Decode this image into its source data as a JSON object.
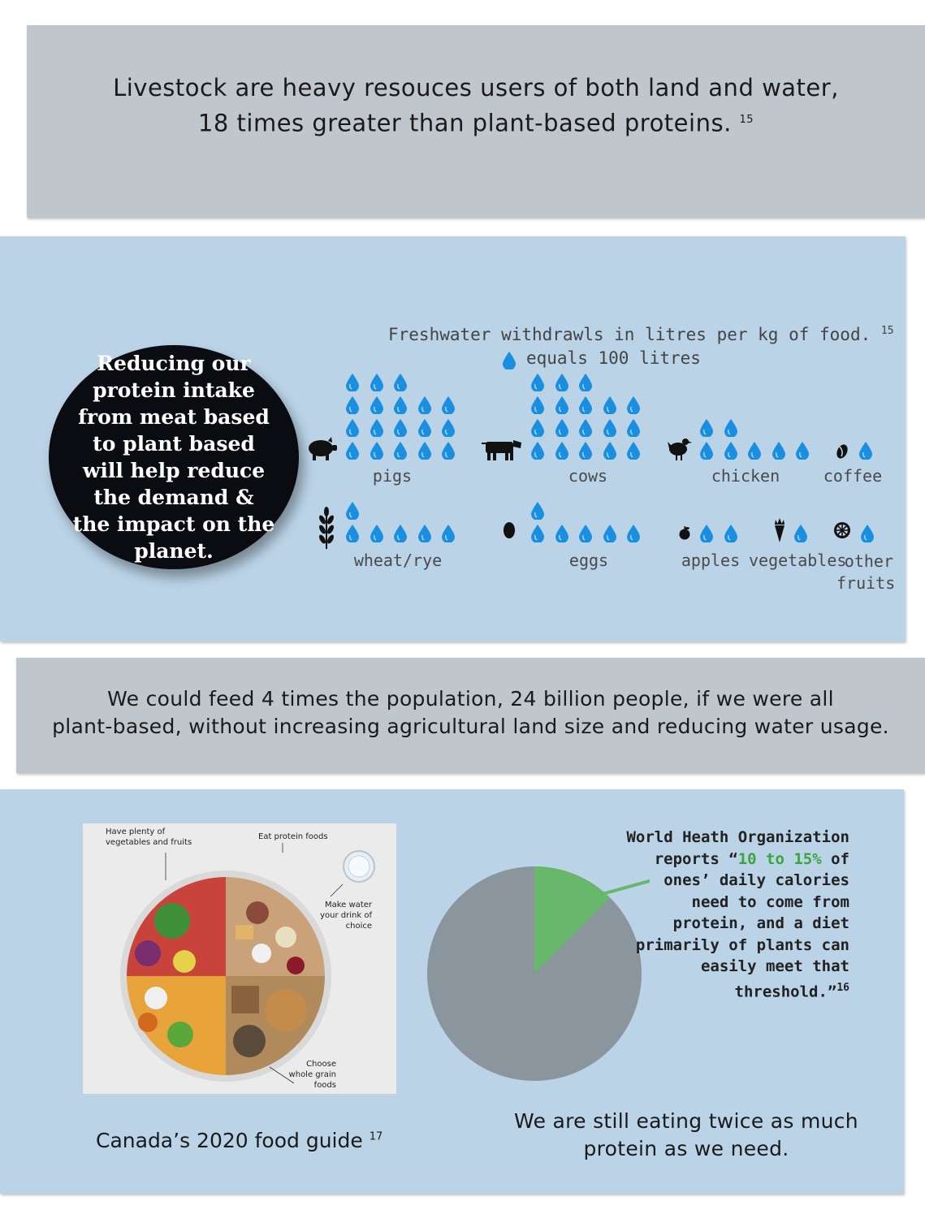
{
  "section1": {
    "line1": "Livestock are heavy resouces users of both land and water,",
    "line2": "18 times greater than plant-based proteins.",
    "ref": "15"
  },
  "section2": {
    "chart_title": "Freshwater withdrawls in litres per kg of food.",
    "chart_ref": "15",
    "legend": "equals 100 litres",
    "bubble_text": "Reducing our protein intake from meat based to plant based will help reduce the demand & the impact on the planet.",
    "drop_color": "#1a8fe0",
    "labels": {
      "pigs": "pigs",
      "cows": "cows",
      "chicken": "chicken",
      "coffee": "coffee",
      "wheat": "wheat/rye",
      "eggs": "eggs",
      "apples": "apples",
      "vegetables": "vegetables",
      "other_fruits_1": "other",
      "other_fruits_2": "fruits"
    }
  },
  "chart_data": {
    "type": "bar",
    "categories": [
      "pigs",
      "cows",
      "chicken",
      "coffee",
      "wheat/rye",
      "eggs",
      "apples",
      "vegetables",
      "other fruits"
    ],
    "values": [
      1800,
      1800,
      700,
      100,
      600,
      600,
      200,
      100,
      100
    ],
    "unit": "litres per kg",
    "icon_value": 100
  },
  "section3": {
    "line1": "We could feed 4 times the population, 24 billion people, if we were all",
    "line2": "plant-based, without increasing agricultural land size and reducing water usage."
  },
  "section4": {
    "plate_labels": {
      "veg": "Have plenty of vegetables and fruits",
      "protein": "Eat protein foods",
      "water": "Make water your drink of choice",
      "grain": "Choose whole grain foods"
    },
    "caption": "Canada’s 2020 food guide",
    "caption_ref": "17",
    "who_prefix": "World Heath Organization reports",
    "who_quote_open": "“",
    "who_highlight": "10 to 15%",
    "who_rest": "of ones’ daily calories need to come from protein, and a diet primarily of plants can easily meet that threshold.”",
    "who_ref": "16",
    "pie_note_1": "We are still eating twice as much",
    "pie_note_2": "protein as we need.",
    "pie_colors": {
      "main": "#8a959e",
      "slice": "#67b86a"
    },
    "pie_slice_percent": 12.5
  }
}
